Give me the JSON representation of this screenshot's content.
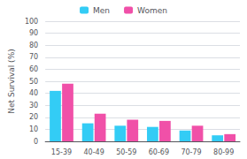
{
  "chart_data": {
    "type": "bar",
    "categories": [
      "15-39",
      "40-49",
      "50-59",
      "60-69",
      "70-79",
      "80-99"
    ],
    "series": [
      {
        "name": "Men",
        "color": "#33ccf5",
        "values": [
          42,
          15,
          13,
          12,
          9,
          5
        ]
      },
      {
        "name": "Women",
        "color": "#f050a8",
        "values": [
          48,
          23,
          18,
          17,
          13,
          6
        ]
      }
    ],
    "ylabel": "Net Survival (%)",
    "ylim": [
      0,
      100
    ],
    "yticks": [
      0,
      10,
      20,
      30,
      40,
      50,
      60,
      70,
      80,
      90,
      100
    ],
    "grid": true,
    "legend": "top"
  }
}
